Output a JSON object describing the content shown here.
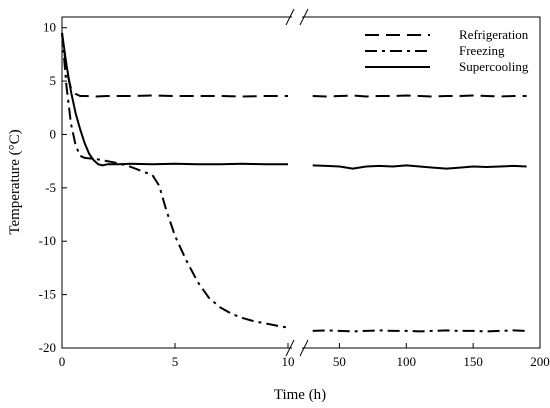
{
  "chart_data": {
    "type": "line",
    "title": "",
    "xlabel": "Time (h)",
    "ylabel": "Temperature (°C)",
    "broken_x_axis": true,
    "grid": false,
    "legend_position": "top-right",
    "ylim": [
      -20,
      11
    ],
    "y_ticks": [
      10,
      5,
      0,
      -5,
      -10,
      -15,
      -20
    ],
    "y_tick_labels": [
      "10",
      "5",
      "0",
      "-5",
      "-10",
      "-15",
      "-20"
    ],
    "x_segments": [
      {
        "xlim": [
          0,
          10
        ],
        "ticks": [
          0,
          5,
          10
        ],
        "tick_labels": [
          "0",
          "5",
          "10"
        ]
      },
      {
        "xlim": [
          25,
          200
        ],
        "ticks": [
          50,
          100,
          150,
          200
        ],
        "tick_labels": [
          "50",
          "100",
          "150",
          "200"
        ]
      }
    ],
    "series": [
      {
        "name": "Refrigeration",
        "style": "dashed",
        "segments": [
          {
            "x": [
              0,
              0.2,
              0.4,
              0.6,
              0.8,
              1.0,
              1.5,
              2.0,
              3.0,
              4.0,
              5.0,
              6.0,
              7.0,
              8.0,
              9.0,
              10.0
            ],
            "y": [
              9.5,
              6.0,
              4.3,
              3.8,
              3.6,
              3.6,
              3.55,
              3.6,
              3.6,
              3.65,
              3.6,
              3.6,
              3.6,
              3.55,
              3.6,
              3.6
            ]
          },
          {
            "x": [
              30,
              40,
              50,
              60,
              70,
              80,
              90,
              100,
              110,
              120,
              130,
              140,
              150,
              160,
              170,
              180,
              190
            ],
            "y": [
              3.6,
              3.55,
              3.6,
              3.65,
              3.55,
              3.6,
              3.6,
              3.65,
              3.6,
              3.55,
              3.6,
              3.6,
              3.65,
              3.6,
              3.55,
              3.6,
              3.6
            ]
          }
        ]
      },
      {
        "name": "Freezing",
        "style": "dash-dot",
        "segments": [
          {
            "x": [
              0,
              0.2,
              0.4,
              0.6,
              0.8,
              1.0,
              1.5,
              2.0,
              2.5,
              3.0,
              3.5,
              4.0,
              4.3,
              4.6,
              5.0,
              5.5,
              6.0,
              6.5,
              7.0,
              7.5,
              8.0,
              8.5,
              9.0,
              9.5,
              10.0
            ],
            "y": [
              9.5,
              4.5,
              1.0,
              -1.0,
              -2.0,
              -2.2,
              -2.3,
              -2.5,
              -2.7,
              -3.0,
              -3.4,
              -3.8,
              -4.8,
              -7.0,
              -9.5,
              -11.8,
              -13.8,
              -15.3,
              -16.2,
              -16.8,
              -17.2,
              -17.5,
              -17.7,
              -17.9,
              -18.1
            ]
          },
          {
            "x": [
              30,
              40,
              50,
              60,
              70,
              80,
              90,
              100,
              110,
              120,
              130,
              140,
              150,
              160,
              170,
              180,
              190
            ],
            "y": [
              -18.4,
              -18.35,
              -18.4,
              -18.45,
              -18.4,
              -18.35,
              -18.4,
              -18.4,
              -18.45,
              -18.4,
              -18.35,
              -18.4,
              -18.4,
              -18.45,
              -18.4,
              -18.35,
              -18.4
            ]
          }
        ]
      },
      {
        "name": "Supercooling",
        "style": "solid",
        "segments": [
          {
            "x": [
              0,
              0.2,
              0.4,
              0.6,
              0.8,
              1.0,
              1.2,
              1.4,
              1.6,
              1.8,
              2.0,
              2.5,
              3.0,
              4.0,
              5.0,
              6.0,
              7.0,
              8.0,
              9.0,
              10.0
            ],
            "y": [
              9.5,
              6.5,
              4.0,
              2.0,
              0.5,
              -0.8,
              -1.8,
              -2.4,
              -2.8,
              -2.9,
              -2.8,
              -2.8,
              -2.75,
              -2.8,
              -2.75,
              -2.8,
              -2.8,
              -2.75,
              -2.8,
              -2.8
            ]
          },
          {
            "x": [
              30,
              40,
              50,
              60,
              70,
              80,
              90,
              100,
              110,
              120,
              130,
              140,
              150,
              160,
              170,
              180,
              190
            ],
            "y": [
              -2.9,
              -2.95,
              -3.0,
              -3.2,
              -3.0,
              -2.95,
              -3.0,
              -2.9,
              -3.0,
              -3.1,
              -3.2,
              -3.1,
              -3.0,
              -3.05,
              -3.0,
              -2.95,
              -3.0
            ]
          }
        ]
      }
    ]
  }
}
